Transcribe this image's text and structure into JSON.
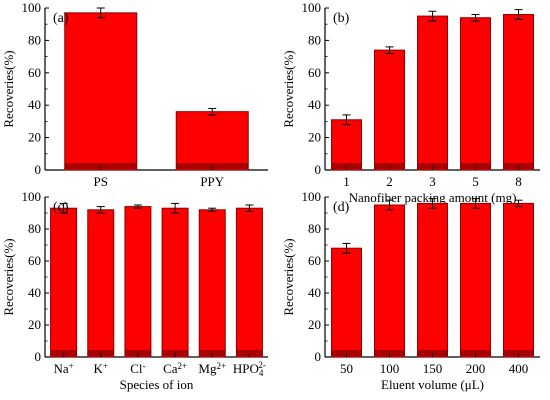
{
  "figure": {
    "bar_color": "#ff0000",
    "bar_edge_color": "#8b0000",
    "axis_color": "#000000"
  },
  "chart_data": [
    {
      "panel": "(a)",
      "type": "bar",
      "categories": [
        "PS",
        "PPY"
      ],
      "values": [
        97,
        36
      ],
      "errors": [
        3,
        2
      ],
      "ylabel": "Recoveries(%)",
      "xlabel": "",
      "ylim": [
        0,
        100
      ],
      "yticks": [
        0,
        20,
        40,
        60,
        80,
        100
      ],
      "grid": false
    },
    {
      "panel": "(b)",
      "type": "bar",
      "categories": [
        "1",
        "2",
        "3",
        "5",
        "8"
      ],
      "values": [
        31,
        74,
        95,
        94,
        96
      ],
      "errors": [
        3,
        2,
        3,
        2,
        3
      ],
      "ylabel": "Recoveries(%)",
      "xlabel": "Nanofiber packing amount (mg)",
      "ylim": [
        0,
        100
      ],
      "yticks": [
        0,
        20,
        40,
        60,
        80,
        100
      ],
      "grid": false
    },
    {
      "panel": "(c)",
      "type": "bar",
      "categories": [
        "Na+",
        "K+",
        "Cl-",
        "Ca2+",
        "Mg2+",
        "HPO42-"
      ],
      "values": [
        93,
        92,
        94,
        93,
        92,
        93
      ],
      "errors": [
        3,
        2,
        1,
        3,
        1,
        2
      ],
      "ylabel": "Recoveries(%)",
      "xlabel": "Species of ion",
      "ylim": [
        0,
        100
      ],
      "yticks": [
        0,
        20,
        40,
        60,
        80,
        100
      ],
      "grid": false
    },
    {
      "panel": "(d)",
      "type": "bar",
      "categories": [
        "50",
        "100",
        "150",
        "200",
        "400"
      ],
      "values": [
        68,
        95,
        96,
        96,
        96
      ],
      "errors": [
        3,
        3,
        3,
        3,
        2
      ],
      "ylabel": "Recoveries(%)",
      "xlabel": "Eluent volume (μL)",
      "ylim": [
        0,
        100
      ],
      "yticks": [
        0,
        20,
        40,
        60,
        80,
        100
      ],
      "grid": false
    }
  ]
}
